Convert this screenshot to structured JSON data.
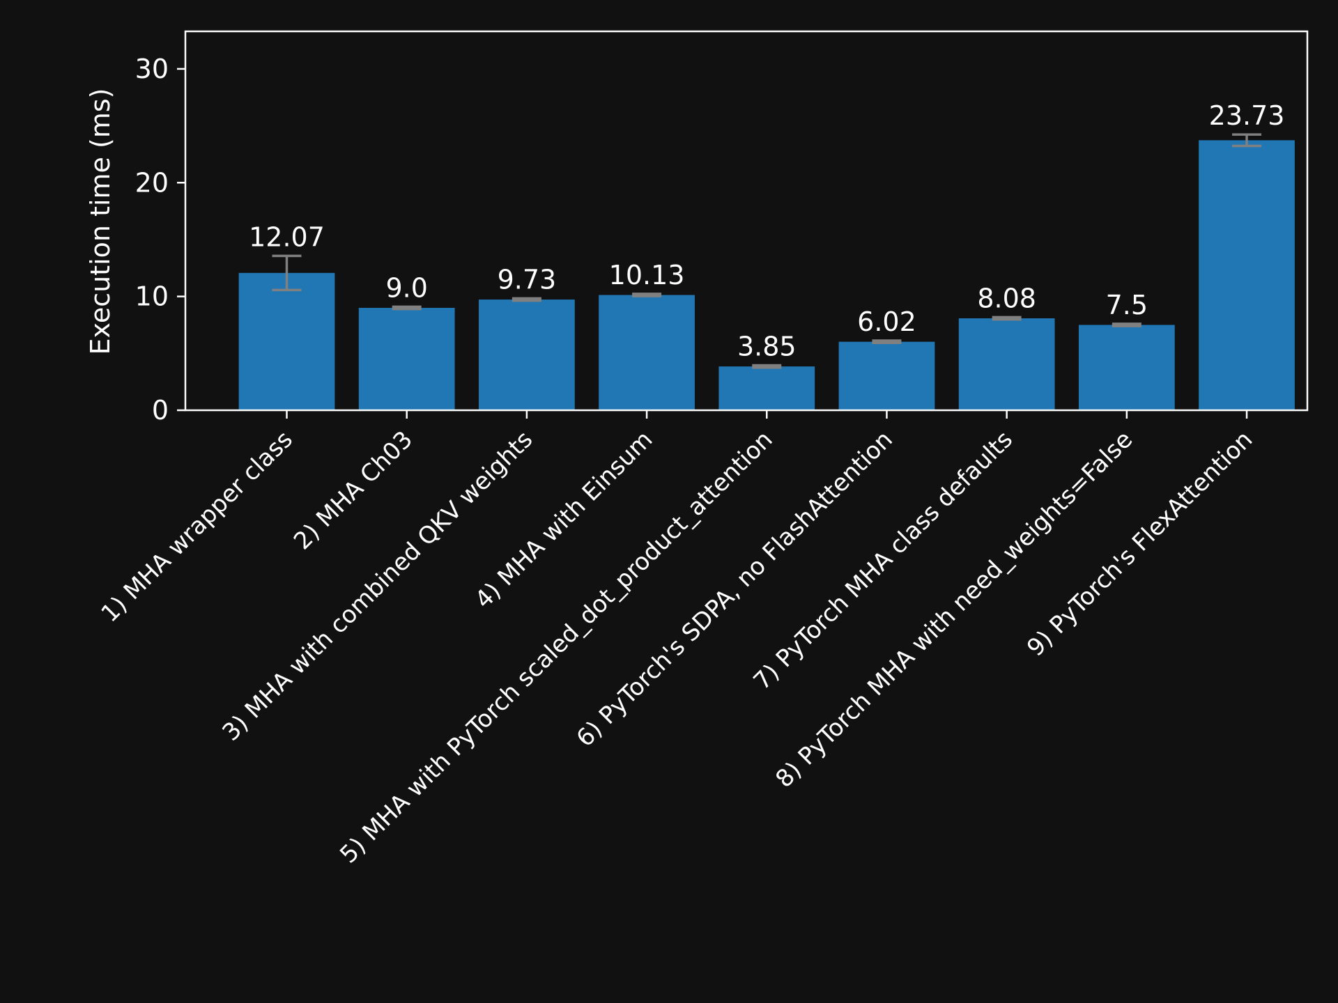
{
  "chart_data": {
    "type": "bar",
    "title": "",
    "xlabel": "",
    "ylabel": "Execution time (ms)",
    "ylim": [
      0,
      33.3
    ],
    "yticks": [
      0,
      10,
      20,
      30
    ],
    "grid": false,
    "legend": "none",
    "colors": {
      "background": "#111112",
      "bar": "#2077b4",
      "error_bar": "#808080",
      "axes": "#ffffff",
      "text": "#ffffff"
    },
    "categories": [
      "1) MHA wrapper class",
      "2) MHA Ch03",
      "3) MHA with combined QKV weights",
      "4) MHA with Einsum",
      "5) MHA with PyTorch scaled_dot_product_attention",
      "6) PyTorch's SDPA, no FlashAttention",
      "7) PyTorch MHA class defaults",
      "8) PyTorch MHA with need_weights=False",
      "9) PyTorch's FlexAttention"
    ],
    "values": [
      12.07,
      9.0,
      9.73,
      10.13,
      3.85,
      6.02,
      8.08,
      7.5,
      23.73
    ],
    "errors": [
      1.5,
      0.1,
      0.1,
      0.1,
      0.1,
      0.1,
      0.1,
      0.1,
      0.5
    ],
    "value_labels": [
      "12.07",
      "9.0",
      "9.73",
      "10.13",
      "3.85",
      "6.02",
      "8.08",
      "7.5",
      "23.73"
    ]
  }
}
